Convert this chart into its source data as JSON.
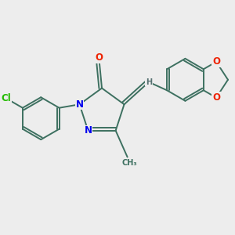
{
  "background_color": "#EDEDED",
  "bond_color": "#3d7060",
  "bond_width": 1.4,
  "dbo": 0.05,
  "atom_colors": {
    "N": "#0000EE",
    "O": "#EE2200",
    "Cl": "#22BB00",
    "H": "#557070",
    "C": "#3d7060"
  },
  "fs_large": 8.5,
  "fs_small": 7.0,
  "xlim": [
    -1.6,
    2.3
  ],
  "ylim": [
    -1.1,
    1.0
  ]
}
